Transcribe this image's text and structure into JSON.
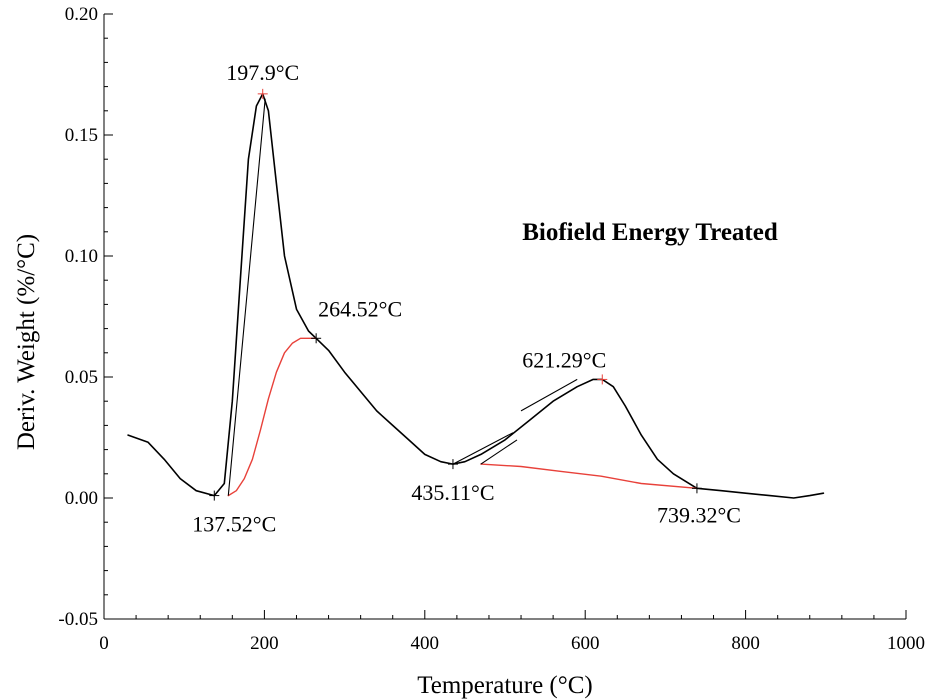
{
  "chart_data": {
    "type": "line",
    "title": "Biofield Energy Treated",
    "xlabel": "Temperature (°C)",
    "ylabel": "Deriv. Weight (%/°C)",
    "xlim": [
      0,
      1000
    ],
    "ylim": [
      -0.05,
      0.2
    ],
    "x_ticks": [
      "0",
      "200",
      "400",
      "600",
      "800",
      "1000"
    ],
    "y_ticks": [
      "-0.05",
      "0.00",
      "0.05",
      "0.10",
      "0.15",
      "0.20"
    ],
    "grid": false,
    "colors": {
      "curve": "#000000",
      "baseline": "#e8413a",
      "tangent": "#000000"
    },
    "series": [
      {
        "role": "dtg-curve",
        "x": [
          30,
          55,
          75,
          95,
          115,
          137.52,
          150,
          160,
          170,
          180,
          190,
          197.9,
          205,
          215,
          225,
          240,
          255,
          264.52,
          280,
          300,
          320,
          340,
          360,
          380,
          400,
          420,
          435.11,
          450,
          470,
          500,
          530,
          560,
          590,
          610,
          621.29,
          635,
          650,
          670,
          690,
          710,
          739.32,
          770,
          800,
          830,
          860,
          880,
          897
        ],
        "y": [
          0.026,
          0.023,
          0.016,
          0.008,
          0.003,
          0.001,
          0.006,
          0.04,
          0.09,
          0.14,
          0.162,
          0.167,
          0.16,
          0.13,
          0.1,
          0.078,
          0.069,
          0.066,
          0.061,
          0.052,
          0.044,
          0.036,
          0.03,
          0.024,
          0.018,
          0.015,
          0.014,
          0.015,
          0.018,
          0.024,
          0.032,
          0.04,
          0.046,
          0.049,
          0.049,
          0.046,
          0.038,
          0.026,
          0.016,
          0.01,
          0.004,
          0.003,
          0.002,
          0.001,
          0.0,
          0.001,
          0.002
        ]
      },
      {
        "role": "baseline-1",
        "x": [
          155,
          165,
          175,
          185,
          195,
          205,
          215,
          225,
          235,
          245,
          255,
          264.52
        ],
        "y": [
          0.001,
          0.003,
          0.008,
          0.016,
          0.028,
          0.041,
          0.052,
          0.06,
          0.064,
          0.066,
          0.066,
          0.066
        ]
      },
      {
        "role": "baseline-2",
        "x": [
          470,
          520,
          570,
          620,
          670,
          739.32
        ],
        "y": [
          0.014,
          0.013,
          0.011,
          0.009,
          0.006,
          0.004
        ]
      }
    ],
    "tangents": [
      {
        "x": [
          155,
          201
        ],
        "y": [
          0.001,
          0.165
        ]
      },
      {
        "x": [
          435.11,
          510
        ],
        "y": [
          0.014,
          0.027
        ]
      },
      {
        "x": [
          470,
          515
        ],
        "y": [
          0.014,
          0.024
        ]
      },
      {
        "x": [
          520,
          590
        ],
        "y": [
          0.036,
          0.049
        ]
      }
    ],
    "annotations": [
      {
        "label": "197.9°C",
        "x": 197.9,
        "y": 0.167,
        "anchor": "above"
      },
      {
        "label": "264.52°C",
        "x": 264.52,
        "y": 0.066,
        "anchor": "above-right"
      },
      {
        "label": "137.52°C",
        "x": 137.52,
        "y": 0.001,
        "anchor": "below"
      },
      {
        "label": "435.11°C",
        "x": 435.11,
        "y": 0.014,
        "anchor": "below"
      },
      {
        "label": "621.29°C",
        "x": 621.29,
        "y": 0.049,
        "anchor": "above-left"
      },
      {
        "label": "739.32°C",
        "x": 739.32,
        "y": 0.004,
        "anchor": "below"
      }
    ]
  }
}
